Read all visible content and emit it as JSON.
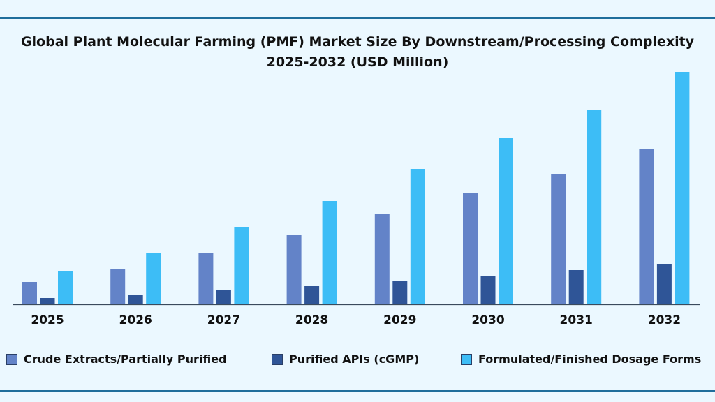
{
  "chart_data": {
    "type": "bar",
    "title": "Global Plant Molecular Farming (PMF) Market Size By Downstream/Processing Complexity 2025-2032 (USD Million)",
    "title_line1": "Global Plant Molecular Farming (PMF) Market Size By Downstream/Processing Complexity",
    "title_line2": "2025-2032 (USD Million)",
    "categories": [
      "2025",
      "2026",
      "2027",
      "2028",
      "2029",
      "2030",
      "2031",
      "2032"
    ],
    "series": [
      {
        "name": "Crude Extracts/Partially Purified",
        "color": "#6383c8",
        "values": [
          32,
          50,
          74,
          99,
          129,
          159,
          186,
          222
        ]
      },
      {
        "name": "Purified APIs (cGMP)",
        "color": "#2f5597",
        "values": [
          9,
          13,
          20,
          26,
          34,
          41,
          49,
          58
        ]
      },
      {
        "name": "Formulated/Finished Dosage Forms",
        "color": "#3dbdf6",
        "values": [
          48,
          74,
          111,
          148,
          194,
          238,
          279,
          333
        ]
      }
    ],
    "ylim": [
      0,
      340
    ],
    "xlabel": "",
    "ylabel": "",
    "grid": false,
    "y_axis_visible": false,
    "legend": "bottom"
  }
}
